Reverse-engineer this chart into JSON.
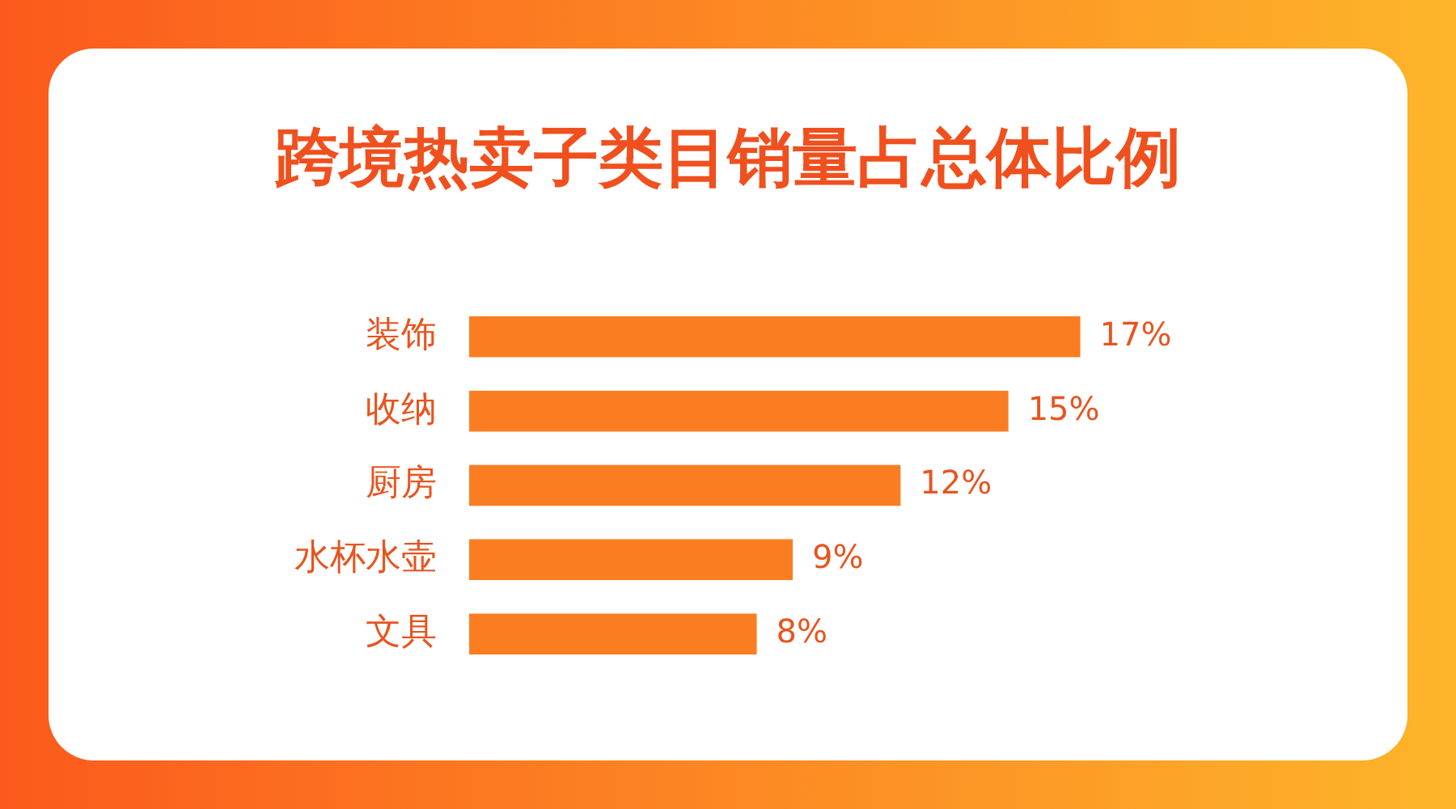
{
  "chart_data": {
    "type": "bar",
    "orientation": "horizontal",
    "title": "跨境热卖子类目销量占总体比例",
    "categories": [
      "装饰",
      "收纳",
      "厨房",
      "水杯水壶",
      "文具"
    ],
    "values": [
      17,
      15,
      12,
      9,
      8
    ],
    "color": "#fb7d22",
    "value_labels": [
      "17%",
      "15%",
      "12%",
      "9%",
      "8%"
    ]
  }
}
